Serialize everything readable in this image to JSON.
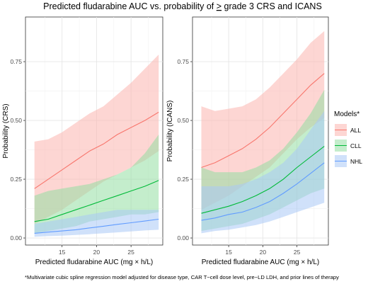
{
  "figure": {
    "title_parts": [
      "Predicted fludarabine AUC vs. probability of ",
      ">",
      " grade 3 CRS and ICANS"
    ],
    "footnote": "*Multivariate cubic spline regression model adjusted for disease type, CAR T−cell dose level, pre−LD LDH, and prior lines of therapy",
    "legend": {
      "title": "Models*",
      "placement": "right",
      "entries": [
        "ALL",
        "CLL",
        "NHL"
      ]
    }
  },
  "chart_data": [
    {
      "type": "line",
      "title": "",
      "xlabel": "Predicted fludarabine AUC (mg × h/L)",
      "ylabel": "Probability (CRS)",
      "xlim": [
        9.7,
        29.6
      ],
      "ylim": [
        -0.03,
        0.94
      ],
      "x_ticks": [
        15,
        20,
        25
      ],
      "y_ticks": [
        0.0,
        0.25,
        0.5,
        0.75
      ],
      "y_tick_labels": [
        "0.00",
        "0.25",
        "0.50",
        "0.75"
      ],
      "grid": true,
      "x": [
        11,
        13,
        15,
        17,
        19,
        21,
        23,
        25,
        27,
        29
      ],
      "series": [
        {
          "name": "ALL",
          "color": "#f8766d",
          "band_color": "#fbb4ae",
          "values": [
            0.21,
            0.25,
            0.29,
            0.33,
            0.37,
            0.4,
            0.44,
            0.47,
            0.5,
            0.535
          ],
          "lower": [
            0.06,
            0.09,
            0.12,
            0.16,
            0.2,
            0.24,
            0.27,
            0.3,
            0.33,
            0.37
          ],
          "upper": [
            0.41,
            0.42,
            0.45,
            0.49,
            0.53,
            0.56,
            0.61,
            0.66,
            0.72,
            0.78
          ]
        },
        {
          "name": "CLL",
          "color": "#00ba38",
          "band_color": "#93dea2",
          "values": [
            0.07,
            0.08,
            0.1,
            0.12,
            0.14,
            0.16,
            0.18,
            0.2,
            0.22,
            0.245
          ],
          "lower": [
            0.02,
            0.03,
            0.04,
            0.05,
            0.07,
            0.08,
            0.09,
            0.1,
            0.1,
            0.11
          ],
          "upper": [
            0.18,
            0.2,
            0.21,
            0.22,
            0.23,
            0.25,
            0.27,
            0.3,
            0.36,
            0.44
          ]
        },
        {
          "name": "NHL",
          "color": "#619cff",
          "band_color": "#a9c8f5",
          "values": [
            0.02,
            0.025,
            0.03,
            0.035,
            0.043,
            0.05,
            0.058,
            0.065,
            0.072,
            0.08
          ],
          "lower": [
            0.005,
            0.008,
            0.01,
            0.013,
            0.016,
            0.02,
            0.024,
            0.028,
            0.032,
            0.035
          ],
          "upper": [
            0.06,
            0.07,
            0.08,
            0.09,
            0.1,
            0.11,
            0.12,
            0.12,
            0.12,
            0.12
          ]
        }
      ]
    },
    {
      "type": "line",
      "title": "",
      "xlabel": "Predicted fludarabine AUC (mg × h/L)",
      "ylabel": "Probability (ICANS)",
      "xlim": [
        9.7,
        29.6
      ],
      "ylim": [
        -0.03,
        0.94
      ],
      "x_ticks": [
        15,
        20,
        25
      ],
      "y_ticks": [
        0.0,
        0.25,
        0.5,
        0.75
      ],
      "y_tick_labels": [
        "0.00",
        "0.25",
        "0.50",
        "0.75"
      ],
      "grid": true,
      "x": [
        11,
        13,
        15,
        17,
        19,
        21,
        23,
        25,
        27,
        29
      ],
      "series": [
        {
          "name": "ALL",
          "color": "#f8766d",
          "band_color": "#fbb4ae",
          "values": [
            0.3,
            0.32,
            0.35,
            0.38,
            0.42,
            0.47,
            0.53,
            0.59,
            0.65,
            0.7
          ],
          "lower": [
            0.12,
            0.15,
            0.18,
            0.22,
            0.26,
            0.3,
            0.36,
            0.42,
            0.47,
            0.51
          ],
          "upper": [
            0.56,
            0.54,
            0.55,
            0.56,
            0.59,
            0.64,
            0.7,
            0.76,
            0.83,
            0.88
          ]
        },
        {
          "name": "CLL",
          "color": "#00ba38",
          "band_color": "#93dea2",
          "values": [
            0.105,
            0.12,
            0.135,
            0.155,
            0.18,
            0.21,
            0.25,
            0.3,
            0.345,
            0.39
          ],
          "lower": [
            0.03,
            0.04,
            0.05,
            0.06,
            0.08,
            0.1,
            0.13,
            0.16,
            0.19,
            0.21
          ],
          "upper": [
            0.3,
            0.28,
            0.28,
            0.28,
            0.3,
            0.33,
            0.38,
            0.45,
            0.53,
            0.63
          ]
        },
        {
          "name": "NHL",
          "color": "#619cff",
          "band_color": "#a9c8f5",
          "values": [
            0.075,
            0.085,
            0.1,
            0.11,
            0.13,
            0.155,
            0.19,
            0.23,
            0.275,
            0.32
          ],
          "lower": [
            0.02,
            0.03,
            0.035,
            0.045,
            0.055,
            0.07,
            0.09,
            0.11,
            0.13,
            0.15
          ],
          "upper": [
            0.22,
            0.22,
            0.22,
            0.23,
            0.25,
            0.28,
            0.32,
            0.38,
            0.46,
            0.54
          ]
        }
      ]
    }
  ]
}
